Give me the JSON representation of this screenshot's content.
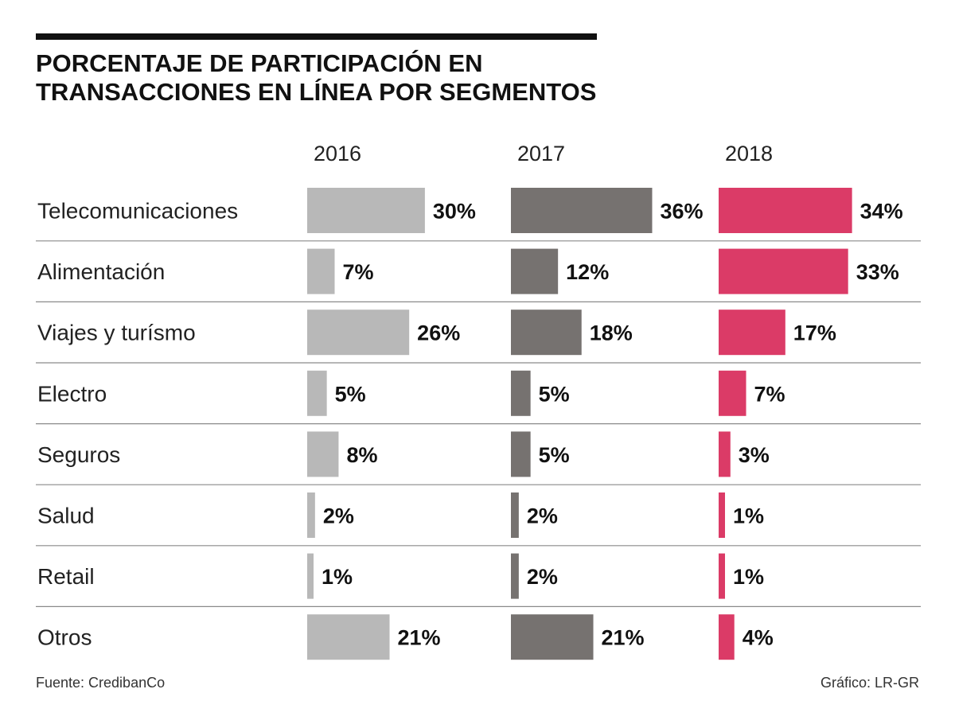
{
  "header": {
    "title_line1": "PORCENTAJE DE PARTICIPACIÓN EN",
    "title_line2": "TRANSACCIONES EN LÍNEA POR SEGMENTOS"
  },
  "footer": {
    "source": "Fuente: CredibanCo",
    "credit": "Gráfico: LR-GR"
  },
  "chart_data": {
    "type": "bar",
    "orientation": "horizontal",
    "title": "PORCENTAJE DE PARTICIPACIÓN EN TRANSACCIONES EN LÍNEA POR SEGMENTOS",
    "categories": [
      "Telecomunicaciones",
      "Alimentación",
      "Viajes y turísmo",
      "Electro",
      "Seguros",
      "Salud",
      "Retail",
      "Otros"
    ],
    "series": [
      {
        "name": "2016",
        "color": "#b8b8b8",
        "values": [
          30,
          7,
          26,
          5,
          8,
          2,
          1,
          21
        ]
      },
      {
        "name": "2017",
        "color": "#767270",
        "values": [
          36,
          12,
          18,
          5,
          5,
          2,
          2,
          21
        ]
      },
      {
        "name": "2018",
        "color": "#db3b67",
        "values": [
          34,
          33,
          17,
          7,
          3,
          1,
          1,
          4
        ]
      }
    ],
    "value_suffix": "%",
    "xlim": [
      0,
      36
    ],
    "grid": false
  }
}
